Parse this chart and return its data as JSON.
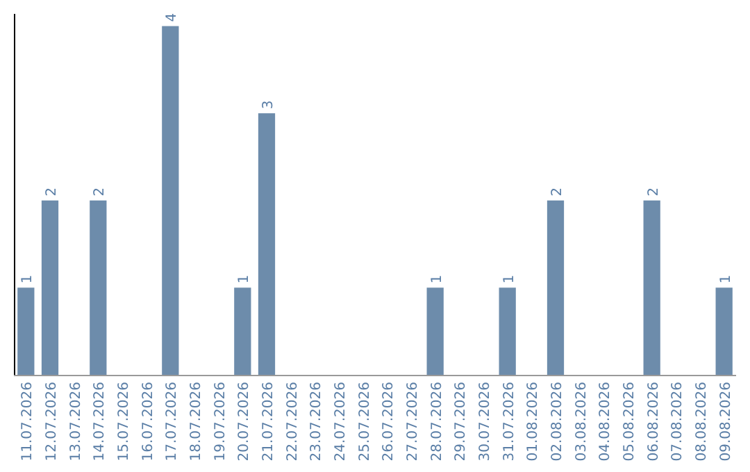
{
  "chart_data": {
    "type": "bar",
    "categories": [
      "11.07.2026",
      "12.07.2026",
      "13.07.2026",
      "14.07.2026",
      "15.07.2026",
      "16.07.2026",
      "17.07.2026",
      "18.07.2026",
      "19.07.2026",
      "20.07.2026",
      "21.07.2026",
      "22.07.2026",
      "23.07.2026",
      "24.07.2026",
      "25.07.2026",
      "26.07.2026",
      "27.07.2026",
      "28.07.2026",
      "29.07.2026",
      "30.07.2026",
      "31.07.2026",
      "01.08.2026",
      "02.08.2026",
      "03.08.2026",
      "04.08.2026",
      "05.08.2026",
      "06.08.2026",
      "07.08.2026",
      "08.08.2026",
      "09.08.2026"
    ],
    "values": [
      1,
      2,
      0,
      2,
      0,
      0,
      4,
      0,
      0,
      1,
      3,
      0,
      0,
      0,
      0,
      0,
      0,
      1,
      0,
      0,
      1,
      0,
      2,
      0,
      0,
      0,
      2,
      0,
      0,
      1
    ],
    "value_labels": [
      "1",
      "2",
      null,
      "2",
      null,
      null,
      "4",
      null,
      null,
      "1",
      "3",
      null,
      null,
      null,
      null,
      null,
      null,
      "1",
      null,
      null,
      "1",
      null,
      "2",
      null,
      null,
      null,
      "2",
      null,
      null,
      "1"
    ],
    "color": "#6d8cab"
  }
}
